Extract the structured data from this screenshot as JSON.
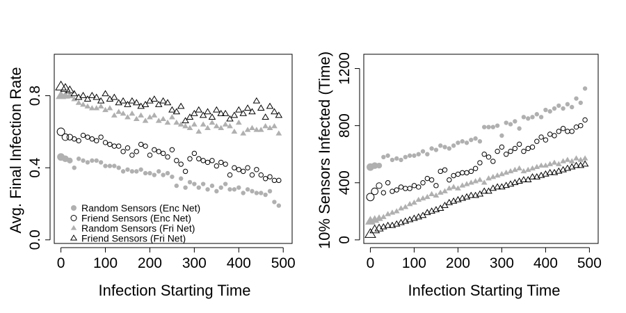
{
  "chart_data": [
    {
      "type": "scatter",
      "title": "",
      "xlabel": "Infection Starting Time",
      "ylabel": "Avg. Final Infection Rate",
      "xlim": [
        -15,
        520
      ],
      "ylim": [
        -0.02,
        1.03
      ],
      "xticks": [
        0,
        100,
        200,
        300,
        400,
        500
      ],
      "xtick_labels": [
        "0",
        "100",
        "200",
        "300",
        "400",
        "500"
      ],
      "yticks": [
        0.0,
        0.4,
        0.8
      ],
      "ytick_labels": [
        "0.0",
        "0.4",
        "0.8"
      ],
      "grid": false,
      "legend_position": "bottom-left",
      "x": [
        0,
        10,
        20,
        30,
        40,
        50,
        60,
        70,
        80,
        90,
        100,
        110,
        120,
        130,
        140,
        150,
        160,
        170,
        180,
        190,
        200,
        210,
        220,
        230,
        240,
        250,
        260,
        270,
        280,
        290,
        300,
        310,
        320,
        330,
        340,
        350,
        360,
        370,
        380,
        390,
        400,
        410,
        420,
        430,
        440,
        450,
        460,
        470,
        480,
        490
      ],
      "series": [
        {
          "name": "Random Sensors (Enc Net)",
          "marker": "filled-circle",
          "color": "#b0b0b0",
          "values": [
            0.46,
            0.45,
            0.44,
            0.4,
            0.45,
            0.44,
            0.43,
            0.44,
            0.44,
            0.43,
            0.41,
            0.41,
            0.41,
            0.4,
            0.38,
            0.39,
            0.38,
            0.38,
            0.39,
            0.37,
            0.37,
            0.36,
            0.38,
            0.36,
            0.37,
            0.35,
            0.3,
            0.34,
            0.29,
            0.32,
            0.31,
            0.29,
            0.31,
            0.28,
            0.3,
            0.27,
            0.29,
            0.31,
            0.28,
            0.28,
            0.29,
            0.26,
            0.28,
            0.27,
            0.26,
            0.26,
            0.25,
            0.27,
            0.21,
            0.19
          ]
        },
        {
          "name": "Friend Sensors (Enc Net)",
          "marker": "open-circle",
          "color": "#000000",
          "values": [
            0.6,
            0.57,
            0.57,
            0.56,
            0.55,
            0.58,
            0.57,
            0.56,
            0.55,
            0.57,
            0.54,
            0.53,
            0.52,
            0.52,
            0.49,
            0.51,
            0.47,
            0.49,
            0.53,
            0.52,
            0.47,
            0.5,
            0.49,
            0.48,
            0.46,
            0.5,
            0.44,
            0.42,
            0.38,
            0.45,
            0.48,
            0.45,
            0.44,
            0.43,
            0.44,
            0.41,
            0.43,
            0.42,
            0.36,
            0.4,
            0.39,
            0.38,
            0.4,
            0.36,
            0.39,
            0.36,
            0.34,
            0.35,
            0.33,
            0.33
          ]
        },
        {
          "name": "Random Sensors (Fri Net)",
          "marker": "filled-triangle",
          "color": "#b0b0b0",
          "values": [
            0.8,
            0.8,
            0.8,
            0.78,
            0.76,
            0.75,
            0.74,
            0.73,
            0.73,
            0.74,
            0.72,
            0.73,
            0.69,
            0.71,
            0.7,
            0.68,
            0.7,
            0.67,
            0.69,
            0.66,
            0.68,
            0.69,
            0.66,
            0.67,
            0.65,
            0.68,
            0.65,
            0.64,
            0.63,
            0.62,
            0.64,
            0.6,
            0.64,
            0.62,
            0.65,
            0.63,
            0.62,
            0.64,
            0.63,
            0.6,
            0.65,
            0.59,
            0.61,
            0.62,
            0.61,
            0.61,
            0.63,
            0.62,
            0.63,
            0.59
          ]
        },
        {
          "name": "Friend Sensors (Fri Net)",
          "marker": "open-triangle",
          "color": "#000000",
          "values": [
            0.85,
            0.84,
            0.83,
            0.81,
            0.79,
            0.8,
            0.78,
            0.8,
            0.79,
            0.77,
            0.81,
            0.78,
            0.79,
            0.76,
            0.77,
            0.75,
            0.77,
            0.76,
            0.74,
            0.75,
            0.77,
            0.78,
            0.75,
            0.77,
            0.76,
            0.72,
            0.71,
            0.74,
            0.66,
            0.68,
            0.7,
            0.72,
            0.69,
            0.71,
            0.68,
            0.72,
            0.7,
            0.7,
            0.67,
            0.69,
            0.72,
            0.7,
            0.73,
            0.71,
            0.77,
            0.73,
            0.68,
            0.74,
            0.71,
            0.69
          ]
        }
      ]
    },
    {
      "type": "scatter",
      "title": "",
      "xlabel": "Infection Starting Time",
      "ylabel": "10% Sensors Infected (Time)",
      "xlim": [
        -15,
        520
      ],
      "ylim": [
        -25,
        1300
      ],
      "xticks": [
        0,
        100,
        200,
        300,
        400,
        500
      ],
      "xtick_labels": [
        "0",
        "100",
        "200",
        "300",
        "400",
        "500"
      ],
      "yticks": [
        0,
        400,
        800,
        1200
      ],
      "ytick_labels": [
        "0",
        "400",
        "800",
        "1200"
      ],
      "grid": false,
      "x": [
        0,
        10,
        20,
        30,
        40,
        50,
        60,
        70,
        80,
        90,
        100,
        110,
        120,
        130,
        140,
        150,
        160,
        170,
        180,
        190,
        200,
        210,
        220,
        230,
        240,
        250,
        260,
        270,
        280,
        290,
        300,
        310,
        320,
        330,
        340,
        350,
        360,
        370,
        380,
        390,
        400,
        410,
        420,
        430,
        440,
        450,
        460,
        470,
        480,
        490
      ],
      "series": [
        {
          "name": "Random Sensors (Enc Net)",
          "marker": "filled-circle",
          "color": "#b0b0b0",
          "values": [
            510,
            520,
            520,
            580,
            590,
            560,
            570,
            560,
            580,
            590,
            590,
            600,
            620,
            600,
            640,
            630,
            660,
            650,
            640,
            660,
            680,
            690,
            680,
            700,
            710,
            690,
            790,
            790,
            790,
            800,
            730,
            820,
            810,
            830,
            780,
            860,
            850,
            860,
            880,
            860,
            910,
            900,
            920,
            940,
            920,
            950,
            930,
            990,
            960,
            1060
          ]
        },
        {
          "name": "Friend Sensors (Enc Net)",
          "marker": "open-circle",
          "color": "#000000",
          "values": [
            300,
            340,
            380,
            330,
            400,
            340,
            350,
            370,
            360,
            360,
            380,
            370,
            400,
            430,
            420,
            380,
            480,
            490,
            420,
            450,
            460,
            470,
            470,
            480,
            500,
            540,
            600,
            580,
            550,
            620,
            650,
            600,
            620,
            640,
            670,
            620,
            640,
            650,
            690,
            720,
            700,
            740,
            730,
            760,
            780,
            760,
            760,
            790,
            800,
            840
          ]
        },
        {
          "name": "Random Sensors (Fri Net)",
          "marker": "filled-triangle",
          "color": "#b0b0b0",
          "values": [
            130,
            140,
            150,
            160,
            180,
            190,
            200,
            220,
            230,
            250,
            260,
            280,
            290,
            300,
            320,
            310,
            330,
            340,
            360,
            370,
            360,
            380,
            390,
            400,
            410,
            420,
            400,
            430,
            440,
            450,
            460,
            470,
            480,
            490,
            500,
            480,
            490,
            500,
            510,
            520,
            520,
            530,
            540,
            530,
            550,
            560,
            550,
            570,
            560,
            570
          ]
        },
        {
          "name": "Friend Sensors (Fri Net)",
          "marker": "open-triangle",
          "color": "#000000",
          "values": [
            40,
            70,
            80,
            90,
            100,
            100,
            110,
            120,
            130,
            140,
            150,
            160,
            170,
            190,
            200,
            210,
            220,
            240,
            260,
            270,
            280,
            290,
            300,
            310,
            310,
            320,
            340,
            340,
            360,
            370,
            370,
            380,
            390,
            400,
            410,
            420,
            420,
            440,
            440,
            450,
            460,
            470,
            470,
            480,
            490,
            500,
            510,
            520,
            520,
            530
          ]
        }
      ]
    }
  ],
  "legend": [
    {
      "label": "Random Sensors (Enc Net)",
      "marker": "filled-circle"
    },
    {
      "label": "Friend Sensors (Enc Net)",
      "marker": "open-circle"
    },
    {
      "label": "Random Sensors (Fri Net)",
      "marker": "filled-triangle"
    },
    {
      "label": "Friend Sensors (Fri Net)",
      "marker": "open-triangle"
    }
  ],
  "colors": {
    "gray_marker": "#b0b0b0",
    "black_marker": "#000000",
    "axis": "#000000",
    "background": "#ffffff"
  }
}
